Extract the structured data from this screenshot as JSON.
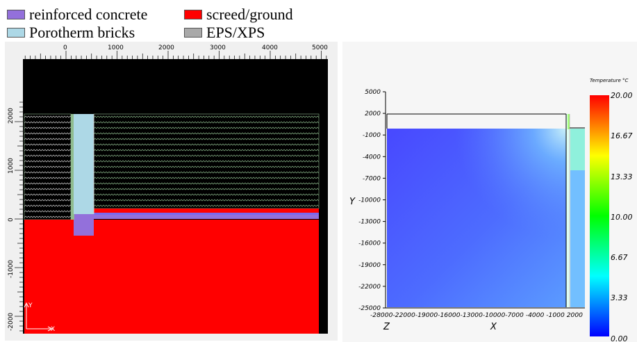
{
  "legend": {
    "items": [
      {
        "label": "reinforced concrete",
        "color": "#9370db"
      },
      {
        "label": "screed/ground",
        "color": "#ff0000"
      },
      {
        "label": "Porotherm bricks",
        "color": "#add8e6"
      },
      {
        "label": "EPS/XPS",
        "color": "#a9a9a9"
      }
    ]
  },
  "geometry_view": {
    "top_ticks": [
      "0",
      "1000",
      "2000",
      "3000",
      "4000",
      "5000"
    ],
    "left_ticks": [
      "2000",
      "1000",
      "0",
      "-1000",
      "-2000"
    ],
    "axis_x": "X",
    "axis_y": "Y"
  },
  "temperature_view": {
    "colorbar_title": "Temperature °C",
    "colorbar_labels": [
      "20.00",
      "16.67",
      "13.33",
      "10.00",
      "6.67",
      "3.33",
      "0.00"
    ],
    "colorbar_colors": [
      "#ff0000",
      "#ffff00",
      "#00ff00",
      "#00ffff",
      "#0000ff"
    ],
    "y_ticks": [
      "5000",
      "2000",
      "-1000",
      "-4000",
      "-7000",
      "-10000",
      "-13000",
      "-16000",
      "-19000",
      "-22000",
      "-25000"
    ],
    "x_ticks": "-28000-22000-19000-16000-13000-10000-7000 -4000 -1000 2000",
    "x_label": "X",
    "y_label": "Y",
    "z_label": "Z"
  }
}
